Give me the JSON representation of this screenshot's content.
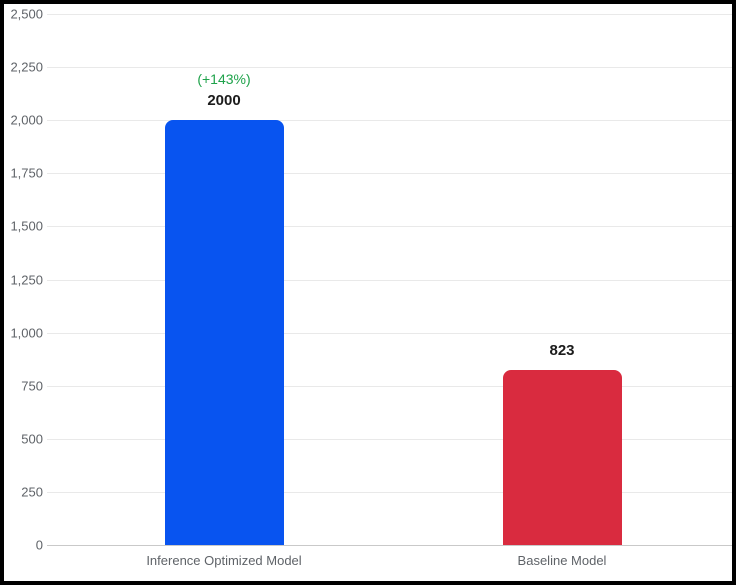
{
  "chart_data": {
    "type": "bar",
    "title": "",
    "xlabel": "",
    "ylabel": "",
    "categories": [
      "Inference Optimized Model",
      "Baseline Model"
    ],
    "values": [
      2000,
      823
    ],
    "value_labels": [
      "2000",
      "823"
    ],
    "bar_colors": [
      "#0854f0",
      "#d92b3f"
    ],
    "annotations": [
      {
        "bar_index": 0,
        "text": "(+143%)",
        "color": "#1ea24a"
      }
    ],
    "ylim": [
      0,
      2500
    ],
    "ytick_step": 250,
    "ytick_labels": [
      "0",
      "250",
      "500",
      "750",
      "1,000",
      "1,250",
      "1,500",
      "1,750",
      "2,000",
      "2,250",
      "2,500"
    ],
    "grid": "horizontal",
    "legend": "none"
  },
  "colors": {
    "frame_border": "#000000",
    "background": "#ffffff",
    "gridline": "#e9e9e9",
    "zero_line": "#c9c9c9",
    "tick_label": "#5f6368",
    "category_label": "#5f6368",
    "value_label": "#1c1c1c",
    "annotation_green": "#1ea24a",
    "bar_blue": "#0854f0",
    "bar_red": "#d92b3f"
  }
}
